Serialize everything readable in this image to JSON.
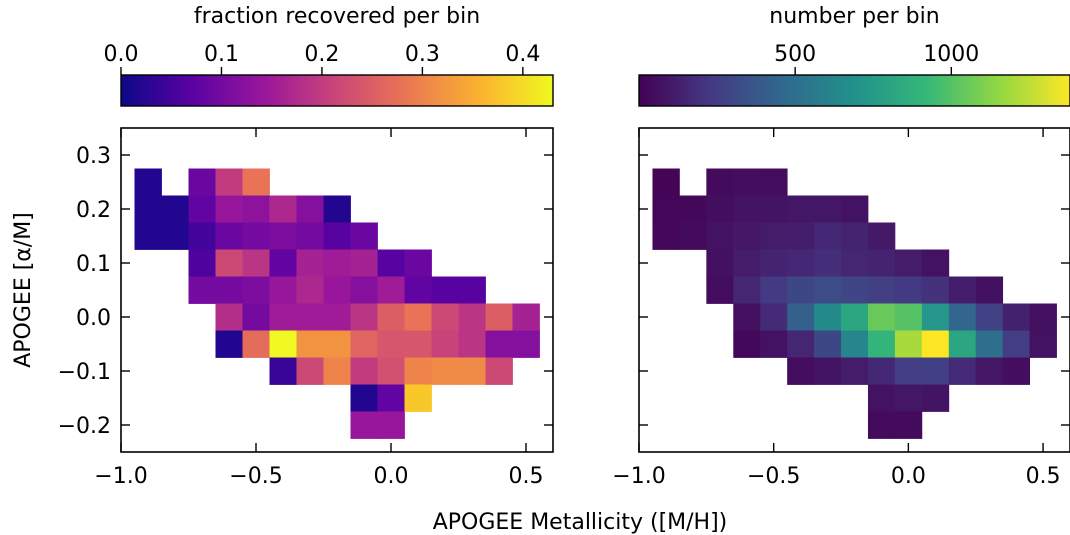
{
  "figure": {
    "xlabel_shared": "APOGEE Metallicity ([M/H])"
  },
  "chart_data": [
    {
      "type": "heatmap",
      "name": "fraction-recovered",
      "title": "",
      "xlabel": "",
      "ylabel": "APOGEE [α/M]",
      "xlim": [
        -1.0,
        0.6
      ],
      "ylim": [
        -0.25,
        0.35
      ],
      "bin_width_x": 0.1,
      "bin_width_y": 0.05,
      "xticks": [
        -1.0,
        -0.5,
        0.0,
        0.5
      ],
      "xtick_labels": [
        "−1.0",
        "−0.5",
        "0.0",
        "0.5"
      ],
      "yticks": [
        -0.2,
        -0.1,
        0.0,
        0.1,
        0.2,
        0.3
      ],
      "ytick_labels": [
        "−0.2",
        "−0.1",
        "0.0",
        "0.1",
        "0.2",
        "0.3"
      ],
      "colormap": "plasma",
      "colorbar": {
        "label": "fraction recovered per bin",
        "range": [
          0.0,
          0.43
        ],
        "ticks": [
          0.0,
          0.1,
          0.2,
          0.3,
          0.4
        ],
        "tick_labels": [
          "0.0",
          "0.1",
          "0.2",
          "0.3",
          "0.4"
        ],
        "placement": "top"
      },
      "cells": [
        {
          "x": -0.9,
          "y": 0.25,
          "v": 0.02
        },
        {
          "x": -0.9,
          "y": 0.2,
          "v": 0.02
        },
        {
          "x": -0.9,
          "y": 0.15,
          "v": 0.02
        },
        {
          "x": -0.8,
          "y": 0.2,
          "v": 0.02
        },
        {
          "x": -0.8,
          "y": 0.15,
          "v": 0.02
        },
        {
          "x": -0.7,
          "y": 0.25,
          "v": 0.09
        },
        {
          "x": -0.7,
          "y": 0.2,
          "v": 0.08
        },
        {
          "x": -0.7,
          "y": 0.15,
          "v": 0.05
        },
        {
          "x": -0.7,
          "y": 0.1,
          "v": 0.06
        },
        {
          "x": -0.7,
          "y": 0.05,
          "v": 0.1
        },
        {
          "x": -0.6,
          "y": 0.25,
          "v": 0.2
        },
        {
          "x": -0.6,
          "y": 0.2,
          "v": 0.14
        },
        {
          "x": -0.6,
          "y": 0.15,
          "v": 0.09
        },
        {
          "x": -0.6,
          "y": 0.1,
          "v": 0.22
        },
        {
          "x": -0.6,
          "y": 0.05,
          "v": 0.1
        },
        {
          "x": -0.6,
          "y": 0.0,
          "v": 0.18
        },
        {
          "x": -0.6,
          "y": -0.05,
          "v": 0.02
        },
        {
          "x": -0.5,
          "y": 0.25,
          "v": 0.28
        },
        {
          "x": -0.5,
          "y": 0.2,
          "v": 0.13
        },
        {
          "x": -0.5,
          "y": 0.15,
          "v": 0.1
        },
        {
          "x": -0.5,
          "y": 0.1,
          "v": 0.19
        },
        {
          "x": -0.5,
          "y": 0.05,
          "v": 0.11
        },
        {
          "x": -0.5,
          "y": 0.0,
          "v": 0.1
        },
        {
          "x": -0.5,
          "y": -0.05,
          "v": 0.27
        },
        {
          "x": -0.4,
          "y": 0.2,
          "v": 0.17
        },
        {
          "x": -0.4,
          "y": 0.15,
          "v": 0.11
        },
        {
          "x": -0.4,
          "y": 0.1,
          "v": 0.08
        },
        {
          "x": -0.4,
          "y": 0.05,
          "v": 0.14
        },
        {
          "x": -0.4,
          "y": 0.0,
          "v": 0.15
        },
        {
          "x": -0.4,
          "y": -0.05,
          "v": 0.43
        },
        {
          "x": -0.4,
          "y": -0.1,
          "v": 0.04
        },
        {
          "x": -0.3,
          "y": 0.2,
          "v": 0.12
        },
        {
          "x": -0.3,
          "y": 0.15,
          "v": 0.1
        },
        {
          "x": -0.3,
          "y": 0.1,
          "v": 0.16
        },
        {
          "x": -0.3,
          "y": 0.05,
          "v": 0.17
        },
        {
          "x": -0.3,
          "y": 0.0,
          "v": 0.15
        },
        {
          "x": -0.3,
          "y": -0.05,
          "v": 0.32
        },
        {
          "x": -0.3,
          "y": -0.1,
          "v": 0.22
        },
        {
          "x": -0.2,
          "y": 0.2,
          "v": 0.02
        },
        {
          "x": -0.2,
          "y": 0.15,
          "v": 0.07
        },
        {
          "x": -0.2,
          "y": 0.1,
          "v": 0.15
        },
        {
          "x": -0.2,
          "y": 0.05,
          "v": 0.14
        },
        {
          "x": -0.2,
          "y": 0.0,
          "v": 0.15
        },
        {
          "x": -0.2,
          "y": -0.05,
          "v": 0.32
        },
        {
          "x": -0.2,
          "y": -0.1,
          "v": 0.3
        },
        {
          "x": -0.1,
          "y": 0.15,
          "v": 0.09
        },
        {
          "x": -0.1,
          "y": 0.1,
          "v": 0.16
        },
        {
          "x": -0.1,
          "y": 0.05,
          "v": 0.12
        },
        {
          "x": -0.1,
          "y": 0.0,
          "v": 0.19
        },
        {
          "x": -0.1,
          "y": -0.05,
          "v": 0.26
        },
        {
          "x": -0.1,
          "y": -0.1,
          "v": 0.2
        },
        {
          "x": -0.1,
          "y": -0.15,
          "v": 0.02
        },
        {
          "x": -0.1,
          "y": -0.2,
          "v": 0.14
        },
        {
          "x": 0.0,
          "y": 0.1,
          "v": 0.07
        },
        {
          "x": 0.0,
          "y": 0.05,
          "v": 0.15
        },
        {
          "x": 0.0,
          "y": 0.0,
          "v": 0.25
        },
        {
          "x": 0.0,
          "y": -0.05,
          "v": 0.24
        },
        {
          "x": 0.0,
          "y": -0.1,
          "v": 0.23
        },
        {
          "x": 0.0,
          "y": -0.15,
          "v": 0.08
        },
        {
          "x": 0.0,
          "y": -0.2,
          "v": 0.14
        },
        {
          "x": 0.1,
          "y": 0.1,
          "v": 0.09
        },
        {
          "x": 0.1,
          "y": 0.05,
          "v": 0.08
        },
        {
          "x": 0.1,
          "y": 0.0,
          "v": 0.28
        },
        {
          "x": 0.1,
          "y": -0.05,
          "v": 0.24
        },
        {
          "x": 0.1,
          "y": -0.1,
          "v": 0.3
        },
        {
          "x": 0.1,
          "y": -0.15,
          "v": 0.38
        },
        {
          "x": 0.2,
          "y": 0.05,
          "v": 0.07
        },
        {
          "x": 0.2,
          "y": 0.0,
          "v": 0.22
        },
        {
          "x": 0.2,
          "y": -0.05,
          "v": 0.21
        },
        {
          "x": 0.2,
          "y": -0.1,
          "v": 0.31
        },
        {
          "x": 0.3,
          "y": 0.05,
          "v": 0.07
        },
        {
          "x": 0.3,
          "y": 0.0,
          "v": 0.19
        },
        {
          "x": 0.3,
          "y": -0.05,
          "v": 0.19
        },
        {
          "x": 0.3,
          "y": -0.1,
          "v": 0.31
        },
        {
          "x": 0.4,
          "y": 0.0,
          "v": 0.25
        },
        {
          "x": 0.4,
          "y": -0.05,
          "v": 0.12
        },
        {
          "x": 0.4,
          "y": -0.1,
          "v": 0.22
        },
        {
          "x": 0.5,
          "y": 0.0,
          "v": 0.16
        },
        {
          "x": 0.5,
          "y": -0.05,
          "v": 0.12
        }
      ]
    },
    {
      "type": "heatmap",
      "name": "number-per-bin",
      "title": "",
      "xlabel": "",
      "ylabel": "",
      "xlim": [
        -1.0,
        0.6
      ],
      "ylim": [
        -0.25,
        0.35
      ],
      "bin_width_x": 0.1,
      "bin_width_y": 0.05,
      "xticks": [
        -1.0,
        -0.5,
        0.0,
        0.5
      ],
      "xtick_labels": [
        "−1.0",
        "−0.5",
        "0.0",
        "0.5"
      ],
      "yticks": [
        -0.2,
        -0.1,
        0.0,
        0.1,
        0.2,
        0.3
      ],
      "ytick_labels": [],
      "colormap": "viridis",
      "colorbar": {
        "label": "number per bin",
        "range": [
          0,
          1380
        ],
        "ticks": [
          500,
          1000
        ],
        "tick_labels": [
          "500",
          "1000"
        ],
        "placement": "top"
      },
      "cells": [
        {
          "x": -0.9,
          "y": 0.25,
          "v": 15
        },
        {
          "x": -0.9,
          "y": 0.2,
          "v": 20
        },
        {
          "x": -0.9,
          "y": 0.15,
          "v": 25
        },
        {
          "x": -0.8,
          "y": 0.2,
          "v": 30
        },
        {
          "x": -0.8,
          "y": 0.15,
          "v": 35
        },
        {
          "x": -0.7,
          "y": 0.25,
          "v": 40
        },
        {
          "x": -0.7,
          "y": 0.2,
          "v": 55
        },
        {
          "x": -0.7,
          "y": 0.15,
          "v": 70
        },
        {
          "x": -0.7,
          "y": 0.1,
          "v": 60
        },
        {
          "x": -0.7,
          "y": 0.05,
          "v": 45
        },
        {
          "x": -0.6,
          "y": 0.25,
          "v": 50
        },
        {
          "x": -0.6,
          "y": 0.2,
          "v": 75
        },
        {
          "x": -0.6,
          "y": 0.15,
          "v": 95
        },
        {
          "x": -0.6,
          "y": 0.1,
          "v": 110
        },
        {
          "x": -0.6,
          "y": 0.05,
          "v": 150
        },
        {
          "x": -0.6,
          "y": 0.0,
          "v": 60
        },
        {
          "x": -0.6,
          "y": -0.05,
          "v": 30
        },
        {
          "x": -0.5,
          "y": 0.25,
          "v": 45
        },
        {
          "x": -0.5,
          "y": 0.2,
          "v": 80
        },
        {
          "x": -0.5,
          "y": 0.15,
          "v": 110
        },
        {
          "x": -0.5,
          "y": 0.1,
          "v": 140
        },
        {
          "x": -0.5,
          "y": 0.05,
          "v": 230
        },
        {
          "x": -0.5,
          "y": 0.0,
          "v": 170
        },
        {
          "x": -0.5,
          "y": -0.05,
          "v": 70
        },
        {
          "x": -0.4,
          "y": 0.2,
          "v": 90
        },
        {
          "x": -0.4,
          "y": 0.15,
          "v": 120
        },
        {
          "x": -0.4,
          "y": 0.1,
          "v": 160
        },
        {
          "x": -0.4,
          "y": 0.05,
          "v": 300
        },
        {
          "x": -0.4,
          "y": 0.0,
          "v": 420
        },
        {
          "x": -0.4,
          "y": -0.05,
          "v": 150
        },
        {
          "x": -0.4,
          "y": -0.1,
          "v": 50
        },
        {
          "x": -0.3,
          "y": 0.2,
          "v": 90
        },
        {
          "x": -0.3,
          "y": 0.15,
          "v": 160
        },
        {
          "x": -0.3,
          "y": 0.1,
          "v": 180
        },
        {
          "x": -0.3,
          "y": 0.05,
          "v": 320
        },
        {
          "x": -0.3,
          "y": 0.0,
          "v": 650
        },
        {
          "x": -0.3,
          "y": -0.05,
          "v": 300
        },
        {
          "x": -0.3,
          "y": -0.1,
          "v": 80
        },
        {
          "x": -0.2,
          "y": 0.2,
          "v": 70
        },
        {
          "x": -0.2,
          "y": 0.15,
          "v": 140
        },
        {
          "x": -0.2,
          "y": 0.1,
          "v": 150
        },
        {
          "x": -0.2,
          "y": 0.05,
          "v": 290
        },
        {
          "x": -0.2,
          "y": 0.0,
          "v": 820
        },
        {
          "x": -0.2,
          "y": -0.05,
          "v": 620
        },
        {
          "x": -0.2,
          "y": -0.1,
          "v": 110
        },
        {
          "x": -0.1,
          "y": 0.15,
          "v": 100
        },
        {
          "x": -0.1,
          "y": 0.1,
          "v": 140
        },
        {
          "x": -0.1,
          "y": 0.05,
          "v": 260
        },
        {
          "x": -0.1,
          "y": 0.0,
          "v": 1050
        },
        {
          "x": -0.1,
          "y": -0.05,
          "v": 900
        },
        {
          "x": -0.1,
          "y": -0.1,
          "v": 160
        },
        {
          "x": -0.1,
          "y": -0.15,
          "v": 70
        },
        {
          "x": -0.1,
          "y": -0.2,
          "v": 40
        },
        {
          "x": 0.0,
          "y": 0.1,
          "v": 110
        },
        {
          "x": 0.0,
          "y": 0.05,
          "v": 230
        },
        {
          "x": 0.0,
          "y": 0.0,
          "v": 1000
        },
        {
          "x": 0.0,
          "y": -0.05,
          "v": 1200
        },
        {
          "x": 0.0,
          "y": -0.1,
          "v": 250
        },
        {
          "x": 0.0,
          "y": -0.15,
          "v": 90
        },
        {
          "x": 0.0,
          "y": -0.2,
          "v": 40
        },
        {
          "x": 0.1,
          "y": 0.1,
          "v": 70
        },
        {
          "x": 0.1,
          "y": 0.05,
          "v": 200
        },
        {
          "x": 0.1,
          "y": 0.0,
          "v": 720
        },
        {
          "x": 0.1,
          "y": -0.05,
          "v": 1380
        },
        {
          "x": 0.1,
          "y": -0.1,
          "v": 260
        },
        {
          "x": 0.1,
          "y": -0.15,
          "v": 80
        },
        {
          "x": 0.2,
          "y": 0.05,
          "v": 120
        },
        {
          "x": 0.2,
          "y": 0.0,
          "v": 450
        },
        {
          "x": 0.2,
          "y": -0.05,
          "v": 820
        },
        {
          "x": 0.2,
          "y": -0.1,
          "v": 170
        },
        {
          "x": 0.3,
          "y": 0.05,
          "v": 60
        },
        {
          "x": 0.3,
          "y": 0.0,
          "v": 270
        },
        {
          "x": 0.3,
          "y": -0.05,
          "v": 500
        },
        {
          "x": 0.3,
          "y": -0.1,
          "v": 90
        },
        {
          "x": 0.4,
          "y": 0.0,
          "v": 130
        },
        {
          "x": 0.4,
          "y": -0.05,
          "v": 250
        },
        {
          "x": 0.4,
          "y": -0.1,
          "v": 50
        },
        {
          "x": 0.5,
          "y": 0.0,
          "v": 60
        },
        {
          "x": 0.5,
          "y": -0.05,
          "v": 70
        }
      ]
    }
  ]
}
